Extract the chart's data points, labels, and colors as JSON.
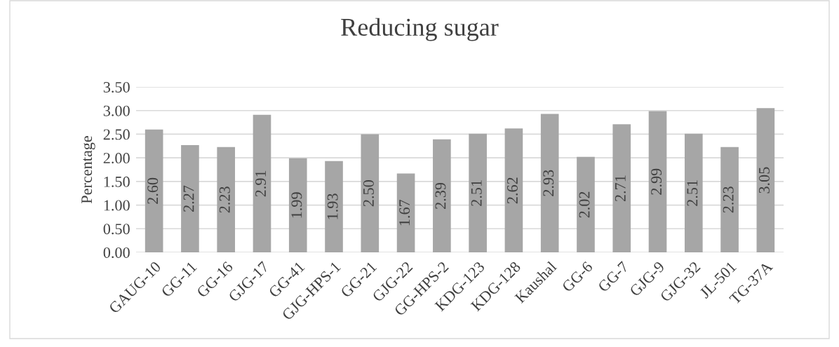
{
  "chart_data": {
    "type": "bar",
    "title": "Reducing sugar",
    "ylabel": "Percentage",
    "categories": [
      "GAUG-10",
      "GG-11",
      "GG-16",
      "GJG-17",
      "GG-41",
      "GJG-HPS-1",
      "GG-21",
      "GJG-22",
      "GG-HPS-2",
      "KDG-123",
      "KDG-128",
      "Kaushal",
      "GG-6",
      "GG-7",
      "GJG-9",
      "GJG-32",
      "JL-501",
      "TG-37A"
    ],
    "values": [
      2.6,
      2.27,
      2.23,
      2.91,
      1.99,
      1.93,
      2.5,
      1.67,
      2.39,
      2.51,
      2.62,
      2.93,
      2.02,
      2.71,
      2.99,
      2.51,
      2.23,
      3.05
    ],
    "value_labels": [
      "2.60",
      "2.27",
      "2.23",
      "2.91",
      "1.99",
      "1.93",
      "2.50",
      "1.67",
      "2.39",
      "2.51",
      "2.62",
      "2.93",
      "2.02",
      "2.71",
      "2.99",
      "2.51",
      "2.23",
      "3.05"
    ],
    "color": "#a6a6a6",
    "ylim": [
      0,
      3.5
    ],
    "yticks": [
      {
        "value": 0,
        "label": "0.00"
      },
      {
        "value": 0.5,
        "label": "0.50"
      },
      {
        "value": 1,
        "label": "1.00"
      },
      {
        "value": 1.5,
        "label": "1.50"
      },
      {
        "value": 2,
        "label": "2.00"
      },
      {
        "value": 2.5,
        "label": "2.50"
      },
      {
        "value": 3,
        "label": "3.00"
      },
      {
        "value": 3.5,
        "label": "3.50"
      }
    ],
    "grid": "y",
    "legend": false
  }
}
